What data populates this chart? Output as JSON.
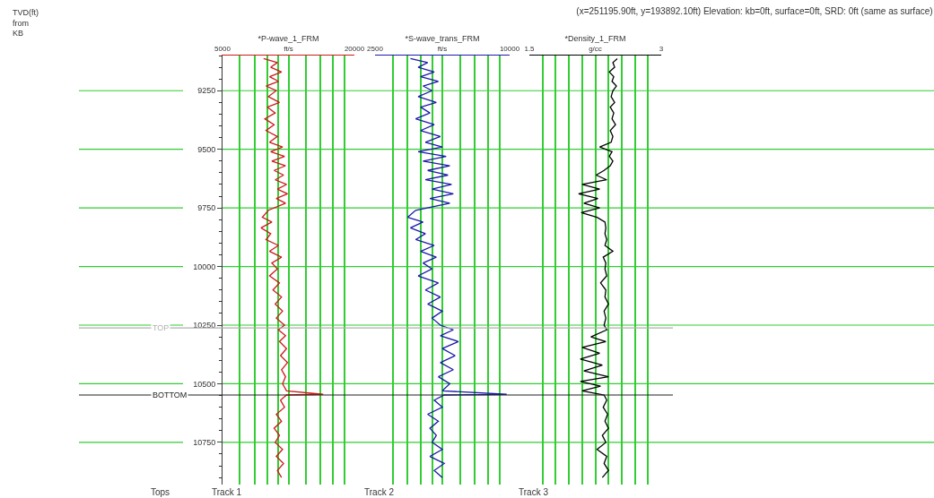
{
  "chart_data": [
    {
      "type": "line",
      "ylabel": "TVD(ft)\nfrom\nKB",
      "xlabel": "*P-wave_1_FRM",
      "log": "x",
      "grid": true,
      "xlim": [
        5000,
        20000
      ],
      "xticks": [
        {
          "value": 5000,
          "label": "5000"
        },
        {
          "value": 6000,
          "label": null
        },
        {
          "value": 7000,
          "label": null
        },
        {
          "value": 8000,
          "label": null
        },
        {
          "value": 9000,
          "label": null
        },
        {
          "value": 10000,
          "label": "ft/s"
        },
        {
          "value": 12000,
          "label": null
        },
        {
          "value": 14000,
          "label": null
        },
        {
          "value": 16000,
          "label": null
        },
        {
          "value": 18000,
          "label": null
        },
        {
          "value": 20000,
          "label": "20000"
        }
      ],
      "ylim": [
        10930,
        9100
      ],
      "yticks": [
        9250,
        9500,
        9750,
        10000,
        10250,
        10500,
        10750
      ],
      "ref_lines": [
        {
          "axis": "y",
          "value": 10262,
          "label": "TOP",
          "color": "#b0b0b0"
        },
        {
          "axis": "y",
          "value": 10548,
          "label": "BOTTOM",
          "color": "#222222"
        }
      ],
      "annotations": [
        "Tops",
        "Track 1"
      ],
      "series": [
        {
          "color": "#cc1a1a",
          "x": [
            7700,
            8900,
            8300,
            9300,
            8200,
            9000,
            7900,
            8800,
            8100,
            9100,
            8000,
            8700,
            7800,
            8600,
            7900,
            8900,
            8200,
            9400,
            8300,
            9600,
            8400,
            9700,
            8600,
            9500,
            8700,
            9800,
            8900,
            9900,
            8800,
            9700,
            8100,
            7600,
            8400,
            7500,
            8300,
            7900,
            9000,
            8200,
            9300,
            8400,
            8900,
            8200,
            9100,
            8500,
            9300,
            8700,
            9400,
            8800,
            9600,
            9000,
            9700,
            9100,
            9800,
            9200,
            9900,
            9300,
            9700,
            9400,
            9800,
            14400,
            9800,
            9200,
            9600,
            8800,
            9300,
            8600,
            9100,
            8700,
            9400,
            8800,
            9500,
            8900,
            9300
          ],
          "values": [
            9113,
            9130,
            9150,
            9170,
            9190,
            9210,
            9230,
            9250,
            9275,
            9300,
            9320,
            9345,
            9370,
            9395,
            9420,
            9445,
            9470,
            9490,
            9510,
            9530,
            9550,
            9570,
            9590,
            9610,
            9630,
            9650,
            9670,
            9690,
            9710,
            9730,
            9760,
            9790,
            9810,
            9835,
            9860,
            9885,
            9910,
            9935,
            9960,
            9985,
            10010,
            10040,
            10070,
            10100,
            10130,
            10160,
            10190,
            10220,
            10250,
            10270,
            10295,
            10320,
            10350,
            10380,
            10410,
            10440,
            10470,
            10500,
            10530,
            10545,
            10548,
            10570,
            10600,
            10630,
            10660,
            10690,
            10720,
            10750,
            10780,
            10810,
            10840,
            10870,
            10900
          ]
        }
      ]
    },
    {
      "type": "line",
      "xlabel": "*S-wave_trans_FRM",
      "log": "x",
      "grid": true,
      "tick_labels": "x",
      "xlim": [
        2500,
        10000
      ],
      "xticks": [
        {
          "value": 2500,
          "label": "2500"
        },
        {
          "value": 3000,
          "label": null
        },
        {
          "value": 3500,
          "label": null
        },
        {
          "value": 4000,
          "label": null
        },
        {
          "value": 4500,
          "label": null
        },
        {
          "value": 5000,
          "label": "ft/s"
        },
        {
          "value": 6000,
          "label": null
        },
        {
          "value": 7000,
          "label": null
        },
        {
          "value": 8000,
          "label": null
        },
        {
          "value": 9000,
          "label": null
        },
        {
          "value": 10000,
          "label": "10000"
        }
      ],
      "ylim": [
        10930,
        9100
      ],
      "yticks": [
        9250,
        9500,
        9750,
        10000,
        10250,
        10500,
        10750
      ],
      "ref_lines": [
        {
          "axis": "y",
          "value": 10262,
          "color": "#b0b0b0"
        },
        {
          "axis": "y",
          "value": 10548,
          "color": "#222222"
        }
      ],
      "annotations": [
        "Track 2"
      ],
      "series": [
        {
          "color": "#1a1aaa",
          "x": [
            3600,
            4300,
            3900,
            4600,
            4000,
            4800,
            4100,
            4500,
            3900,
            4700,
            4000,
            4400,
            3800,
            4600,
            4000,
            4900,
            4200,
            5000,
            3900,
            5200,
            4100,
            5400,
            4300,
            5300,
            4200,
            5500,
            4500,
            5600,
            4400,
            5400,
            3800,
            3500,
            4100,
            3600,
            4200,
            3800,
            4600,
            4000,
            4700,
            4100,
            4500,
            3900,
            4800,
            4200,
            4900,
            4300,
            5000,
            4500,
            4900,
            5600,
            4900,
            5900,
            5000,
            5700,
            4900,
            5600,
            4800,
            5400,
            5000,
            9700,
            5100,
            4600,
            5000,
            4300,
            4800,
            4400,
            4700,
            4500,
            5000,
            4400,
            5100,
            4600,
            5000
          ],
          "values": [
            9113,
            9130,
            9150,
            9170,
            9190,
            9210,
            9230,
            9250,
            9275,
            9300,
            9320,
            9345,
            9370,
            9395,
            9420,
            9445,
            9470,
            9490,
            9510,
            9530,
            9550,
            9570,
            9590,
            9610,
            9630,
            9650,
            9670,
            9690,
            9710,
            9730,
            9760,
            9790,
            9810,
            9835,
            9860,
            9885,
            9910,
            9935,
            9960,
            9985,
            10010,
            10040,
            10070,
            10100,
            10130,
            10160,
            10190,
            10220,
            10250,
            10270,
            10295,
            10320,
            10350,
            10380,
            10410,
            10440,
            10470,
            10500,
            10530,
            10545,
            10548,
            10570,
            10600,
            10630,
            10660,
            10690,
            10720,
            10750,
            10780,
            10810,
            10840,
            10870,
            10900
          ]
        }
      ]
    },
    {
      "type": "line",
      "title": "(x=251195.90ft, y=193892.10ft) Elevation: kb=0ft, surface=0ft, SRD: 0ft (same as surface)",
      "xlabel": "*Density_1_FRM",
      "grid": true,
      "tick_labels": "x",
      "xlim": [
        1.5,
        3
      ],
      "xticks": [
        {
          "value": 1.5,
          "label": "1.5"
        },
        {
          "value": 1.65,
          "label": null
        },
        {
          "value": 1.8,
          "label": null
        },
        {
          "value": 1.95,
          "label": null
        },
        {
          "value": 2.1,
          "label": null
        },
        {
          "value": 2.25,
          "label": "g/cc"
        },
        {
          "value": 2.4,
          "label": null
        },
        {
          "value": 2.55,
          "label": null
        },
        {
          "value": 2.7,
          "label": null
        },
        {
          "value": 2.85,
          "label": null
        },
        {
          "value": 3,
          "label": "3"
        }
      ],
      "ylim": [
        10930,
        9100
      ],
      "yticks": [
        9250,
        9500,
        9750,
        10000,
        10250,
        10500,
        10750
      ],
      "ref_lines": [
        {
          "axis": "y",
          "value": 10262,
          "color": "#b0b0b0"
        },
        {
          "axis": "y",
          "value": 10548,
          "color": "#222222"
        }
      ],
      "annotations": [
        "Track 3"
      ],
      "series": [
        {
          "color": "#000000",
          "x": [
            2.5,
            2.45,
            2.47,
            2.41,
            2.46,
            2.44,
            2.49,
            2.45,
            2.43,
            2.47,
            2.42,
            2.46,
            2.44,
            2.48,
            2.42,
            2.45,
            2.43,
            2.3,
            2.44,
            2.41,
            2.45,
            2.42,
            2.35,
            2.26,
            2.38,
            2.1,
            2.3,
            2.06,
            2.28,
            2.12,
            2.3,
            2.09,
            2.27,
            2.36,
            2.37,
            2.36,
            2.38,
            2.36,
            2.45,
            2.34,
            2.37,
            2.36,
            2.38,
            2.31,
            2.37,
            2.36,
            2.4,
            2.35,
            2.37,
            2.35,
            2.38,
            2.2,
            2.37,
            2.1,
            2.3,
            2.08,
            2.33,
            2.12,
            2.4,
            2.08,
            2.31,
            2.1,
            2.35,
            2.38,
            2.34,
            2.39,
            2.36,
            2.4,
            2.33,
            2.37,
            2.27,
            2.38,
            2.35,
            2.4,
            2.33
          ],
          "values": [
            9113,
            9130,
            9150,
            9170,
            9190,
            9210,
            9230,
            9250,
            9275,
            9300,
            9320,
            9345,
            9370,
            9395,
            9420,
            9445,
            9470,
            9490,
            9510,
            9530,
            9550,
            9570,
            9590,
            9610,
            9630,
            9650,
            9670,
            9690,
            9710,
            9730,
            9750,
            9770,
            9790,
            9810,
            9835,
            9860,
            9885,
            9910,
            9935,
            9960,
            9985,
            10010,
            10040,
            10070,
            10100,
            10130,
            10160,
            10190,
            10220,
            10250,
            10270,
            10300,
            10320,
            10345,
            10370,
            10395,
            10420,
            10445,
            10470,
            10490,
            10510,
            10530,
            10548,
            10570,
            10600,
            10630,
            10660,
            10690,
            10720,
            10750,
            10780,
            10810,
            10840,
            10870,
            10900
          ]
        }
      ]
    }
  ]
}
